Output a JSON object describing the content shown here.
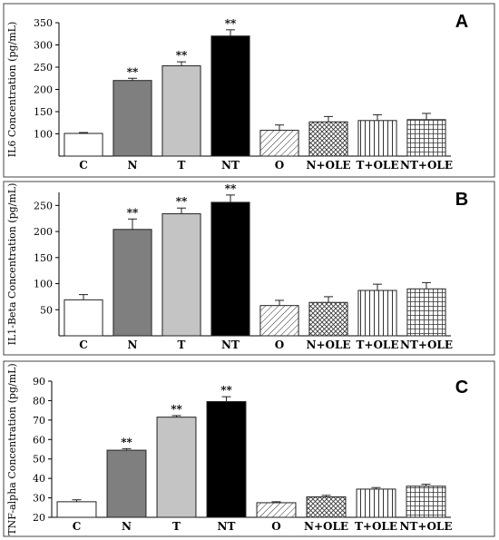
{
  "chart_data": [
    {
      "type": "bar",
      "panel_letter": "A",
      "ylabel": "IL6 Concentration (pg/mL)",
      "ylim": [
        50,
        350
      ],
      "yticks": [
        100,
        150,
        200,
        250,
        300,
        350
      ],
      "categories": [
        "C",
        "N",
        "T",
        "NT",
        "O",
        "N+OLE",
        "T+OLE",
        "NT+OLE"
      ],
      "values": [
        101,
        220,
        253,
        320,
        108,
        127,
        130,
        132
      ],
      "errors": [
        2,
        5,
        9,
        14,
        12,
        12,
        13,
        14
      ],
      "annotations": [
        "",
        "**",
        "**",
        "**",
        "",
        "",
        "",
        ""
      ],
      "fills": [
        "white",
        "#7f7f7f",
        "#c4c4c4",
        "#000000",
        "diagonal",
        "crosshatch",
        "vertical",
        "grid"
      ]
    },
    {
      "type": "bar",
      "panel_letter": "B",
      "ylabel": "IL1-Beta Concentration (pg/mL)",
      "ylim": [
        0,
        275
      ],
      "yticks": [
        50,
        100,
        150,
        200,
        250
      ],
      "categories": [
        "C",
        "N",
        "T",
        "NT",
        "O",
        "N+OLE",
        "T+OLE",
        "NT+OLE"
      ],
      "values": [
        69,
        204,
        234,
        256,
        58,
        64,
        87,
        90
      ],
      "errors": [
        10,
        20,
        11,
        14,
        10,
        11,
        12,
        12
      ],
      "annotations": [
        "",
        "**",
        "**",
        "**",
        "",
        "",
        "",
        ""
      ],
      "fills": [
        "white",
        "#7f7f7f",
        "#c4c4c4",
        "#000000",
        "diagonal",
        "crosshatch",
        "vertical",
        "grid"
      ]
    },
    {
      "type": "bar",
      "panel_letter": "C",
      "ylabel": "TNF-alpha Concentration (pg/mL)",
      "ylim": [
        20,
        90
      ],
      "yticks": [
        20,
        30,
        40,
        50,
        60,
        70,
        80,
        90
      ],
      "categories": [
        "C",
        "N",
        "T",
        "NT",
        "O",
        "N+OLE",
        "T+OLE",
        "NT+OLE"
      ],
      "values": [
        28,
        54.5,
        71.5,
        79.5,
        27.5,
        30.5,
        34.5,
        36
      ],
      "errors": [
        1,
        0.8,
        0.8,
        2.5,
        0.5,
        0.8,
        0.8,
        1
      ],
      "annotations": [
        "",
        "**",
        "**",
        "**",
        "",
        "",
        "",
        ""
      ],
      "fills": [
        "white",
        "#7f7f7f",
        "#c4c4c4",
        "#000000",
        "diagonal",
        "crosshatch",
        "vertical",
        "grid"
      ]
    }
  ]
}
